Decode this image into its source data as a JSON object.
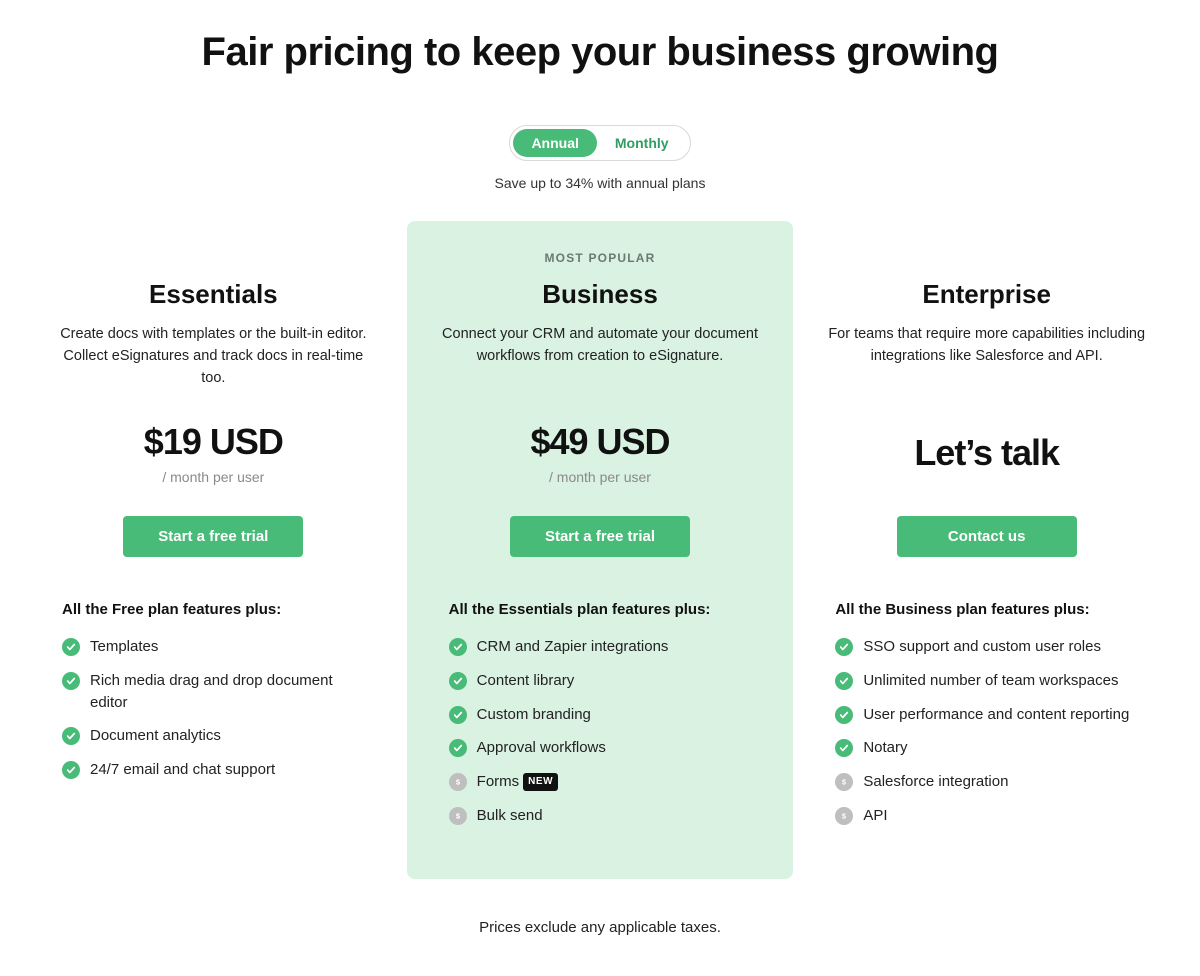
{
  "colors": {
    "accent": "#48bb78",
    "accent_hover": "#3ea96a",
    "highlight_bg": "#d9f2e1",
    "text": "#111111",
    "muted": "#8a8a8a",
    "paid_icon": "#bfbfbf",
    "badge_bg": "#111111",
    "toggle_border": "#d9d9d9",
    "toggle_inactive_text": "#2f9e63"
  },
  "header": {
    "title": "Fair pricing to keep your business growing"
  },
  "billing_toggle": {
    "options": [
      "Annual",
      "Monthly"
    ],
    "active_index": 0,
    "save_note": "Save up to 34% with annual plans"
  },
  "plans": [
    {
      "id": "essentials",
      "badge": "",
      "name": "Essentials",
      "description": "Create docs with templates or the built-in editor. Collect eSignatures and track docs in real-time too.",
      "price": "$19 USD",
      "price_unit": "/ month per user",
      "cta": "Start a free trial",
      "highlight": false,
      "features_title": "All the Free plan features plus:",
      "features": [
        {
          "icon": "check",
          "text": "Templates",
          "badge": ""
        },
        {
          "icon": "check",
          "text": "Rich media drag and drop document editor",
          "badge": ""
        },
        {
          "icon": "check",
          "text": "Document analytics",
          "badge": ""
        },
        {
          "icon": "check",
          "text": "24/7 email and chat support",
          "badge": ""
        }
      ]
    },
    {
      "id": "business",
      "badge": "MOST POPULAR",
      "name": "Business",
      "description": "Connect your CRM and automate your document workflows from creation to eSignature.",
      "price": "$49 USD",
      "price_unit": "/ month per user",
      "cta": "Start a free trial",
      "highlight": true,
      "features_title": "All the Essentials plan features plus:",
      "features": [
        {
          "icon": "check",
          "text": "CRM and Zapier integrations",
          "badge": ""
        },
        {
          "icon": "check",
          "text": "Content library",
          "badge": ""
        },
        {
          "icon": "check",
          "text": "Custom branding",
          "badge": ""
        },
        {
          "icon": "check",
          "text": "Approval workflows",
          "badge": ""
        },
        {
          "icon": "dollar",
          "text": "Forms",
          "badge": "NEW"
        },
        {
          "icon": "dollar",
          "text": "Bulk send",
          "badge": ""
        }
      ]
    },
    {
      "id": "enterprise",
      "badge": "",
      "name": "Enterprise",
      "description": "For teams that require more capabilities including integrations like Salesforce and API.",
      "price": "Let’s talk",
      "price_unit": "",
      "cta": "Contact us",
      "highlight": false,
      "features_title": "All the Business plan features plus:",
      "features": [
        {
          "icon": "check",
          "text": "SSO support and custom user roles",
          "badge": ""
        },
        {
          "icon": "check",
          "text": "Unlimited number of team workspaces",
          "badge": ""
        },
        {
          "icon": "check",
          "text": "User performance and content reporting",
          "badge": ""
        },
        {
          "icon": "check",
          "text": "Notary",
          "badge": ""
        },
        {
          "icon": "dollar",
          "text": "Salesforce integration",
          "badge": ""
        },
        {
          "icon": "dollar",
          "text": "API",
          "badge": ""
        }
      ]
    }
  ],
  "footer": {
    "tax_note": "Prices exclude any applicable taxes."
  }
}
